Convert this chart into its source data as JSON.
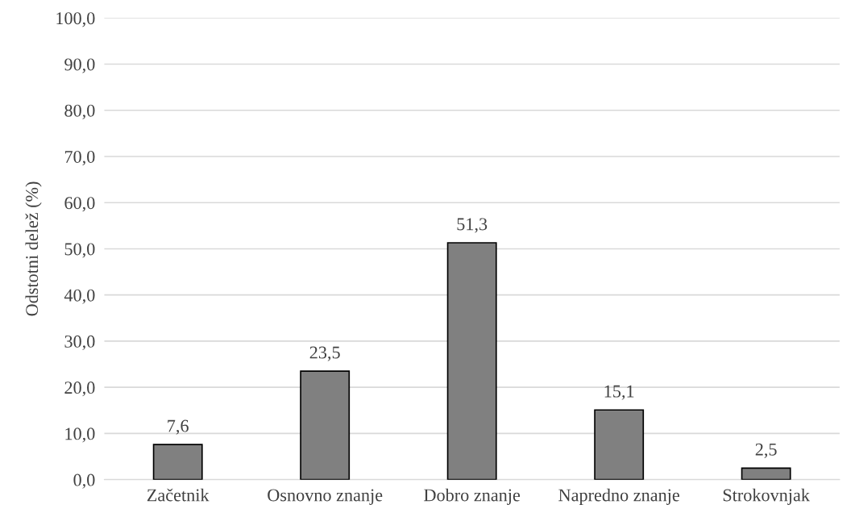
{
  "chart_data": {
    "type": "bar",
    "ylabel": "Odstotni delež (%)",
    "categories": [
      "Začetnik",
      "Osnovno znanje",
      "Dobro znanje",
      "Napredno znanje",
      "Strokovnjak"
    ],
    "values": [
      7.6,
      23.5,
      51.3,
      15.1,
      2.5
    ],
    "value_labels": [
      "7,6",
      "23,5",
      "51,3",
      "15,1",
      "2,5"
    ],
    "color": "#808080",
    "ylim": [
      0,
      100
    ],
    "yticks": [
      {
        "value": 0,
        "label": "0,0"
      },
      {
        "value": 10,
        "label": "10,0"
      },
      {
        "value": 20,
        "label": "20,0"
      },
      {
        "value": 30,
        "label": "30,0"
      },
      {
        "value": 40,
        "label": "40,0"
      },
      {
        "value": 50,
        "label": "50,0"
      },
      {
        "value": 60,
        "label": "60,0"
      },
      {
        "value": 70,
        "label": "70,0"
      },
      {
        "value": 80,
        "label": "80,0"
      },
      {
        "value": 90,
        "label": "90,0"
      },
      {
        "value": 100,
        "label": "100,0"
      }
    ],
    "grid": "y",
    "legend": false
  }
}
